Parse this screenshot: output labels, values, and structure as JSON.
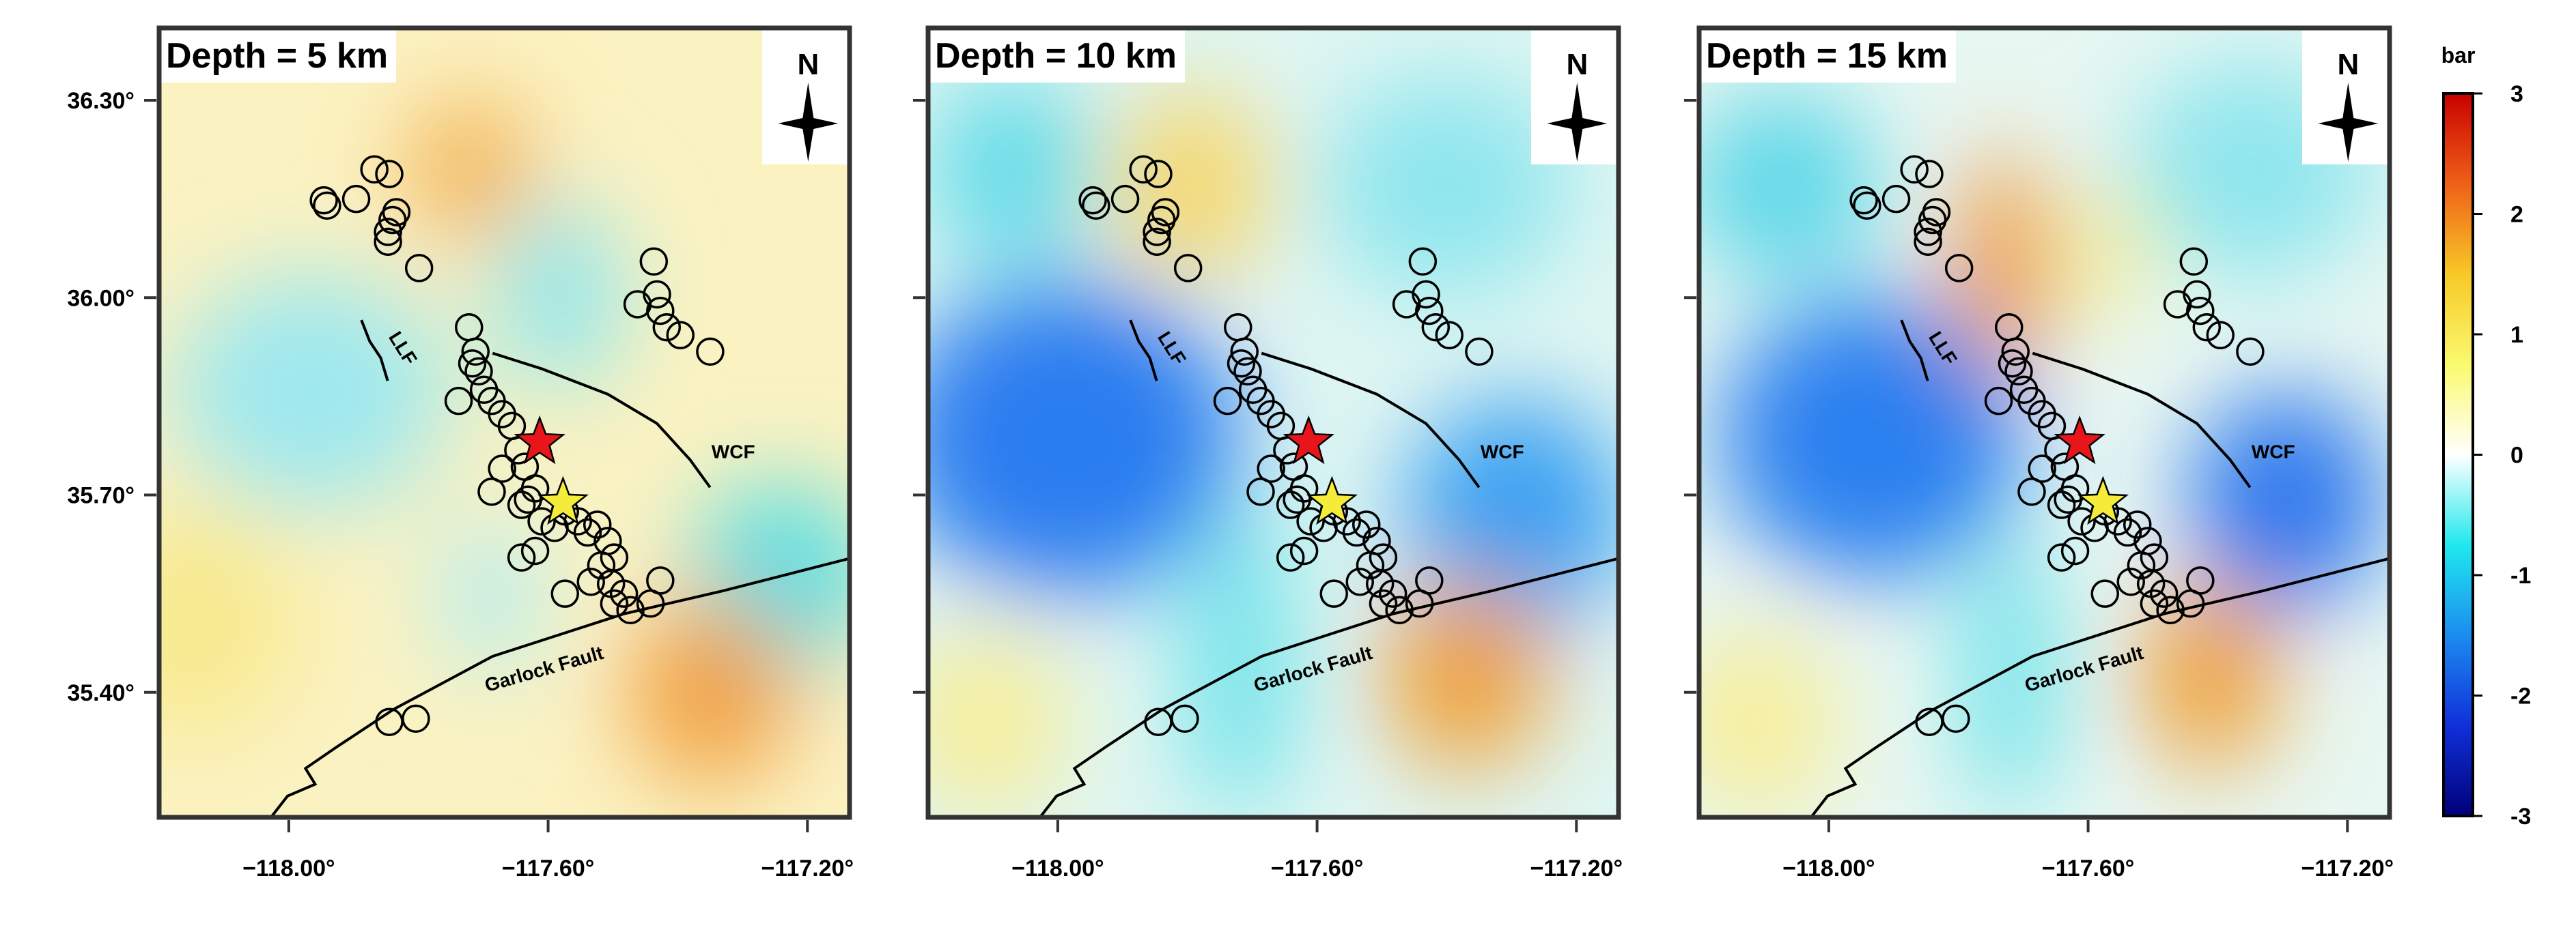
{
  "chart_data": {
    "type": "map",
    "panels": [
      {
        "title": "Depth = 5 km"
      },
      {
        "title": "Depth = 10 km"
      },
      {
        "title": "Depth = 15 km"
      }
    ],
    "north_label": "N",
    "fault_labels": {
      "llf": "LLF",
      "wcf": "WCF",
      "garlock": "Garlock Fault"
    },
    "xlim": [
      -118.2,
      -117.135
    ],
    "ylim": [
      35.21,
      36.41
    ],
    "xticks": [
      {
        "value": -118.0,
        "label": "−118.00°"
      },
      {
        "value": -117.6,
        "label": "−117.60°"
      },
      {
        "value": -117.2,
        "label": "−117.20°"
      }
    ],
    "yticks": [
      {
        "value": 35.4,
        "label": "35.40°"
      },
      {
        "value": 35.7,
        "label": "35.70°"
      },
      {
        "value": 36.0,
        "label": "36.00°"
      },
      {
        "value": 36.3,
        "label": "36.30°"
      }
    ],
    "events": {
      "lon": [
        -117.946,
        -117.941,
        -117.896,
        -117.868,
        -117.845,
        -117.84,
        -117.834,
        -117.847,
        -117.847,
        -117.799,
        -117.722,
        -117.712,
        -117.717,
        -117.707,
        -117.738,
        -117.699,
        -117.687,
        -117.671,
        -117.656,
        -117.646,
        -117.636,
        -117.62,
        -117.631,
        -117.61,
        -117.59,
        -117.574,
        -117.554,
        -117.539,
        -117.524,
        -117.508,
        -117.498,
        -117.518,
        -117.503,
        -117.483,
        -117.498,
        -117.473,
        -117.427,
        -117.437,
        -117.432,
        -117.462,
        -117.427,
        -117.417,
        -117.396,
        -117.35,
        -117.687,
        -117.641,
        -117.62,
        -117.574,
        -117.845,
        -117.804,
        -117.671,
        -117.641,
        -117.442,
        -117.534
      ],
      "lat": [
        36.148,
        36.14,
        36.15,
        36.195,
        36.188,
        36.118,
        36.13,
        36.085,
        36.1,
        36.045,
        35.955,
        35.918,
        35.9,
        35.888,
        35.843,
        35.86,
        35.843,
        35.823,
        35.805,
        35.768,
        35.743,
        35.71,
        35.693,
        35.66,
        35.65,
        35.675,
        35.66,
        35.643,
        35.655,
        35.63,
        35.605,
        35.593,
        35.565,
        35.55,
        35.535,
        35.525,
        35.57,
        36.055,
        36.005,
        35.99,
        35.98,
        35.955,
        35.943,
        35.918,
        35.705,
        35.605,
        35.615,
        35.55,
        35.355,
        35.36,
        35.74,
        35.685,
        35.535,
        35.568
      ]
    },
    "mainshocks": [
      {
        "lon": -117.613,
        "lat": 35.78,
        "color": "#e8161b"
      },
      {
        "lon": -117.577,
        "lat": 35.688,
        "color": "#f5ec3a"
      }
    ],
    "colorbar": {
      "label": "bar",
      "lim": [
        -3,
        3
      ],
      "ticks": [
        3,
        2,
        1,
        0,
        -1,
        -2,
        -3
      ],
      "colors": [
        "#c80000",
        "#f06018",
        "#f8c828",
        "#fafa6e",
        "#ffffff",
        "#20e8ee",
        "#1c8cf0",
        "#1030d8",
        "#00007a"
      ]
    }
  }
}
